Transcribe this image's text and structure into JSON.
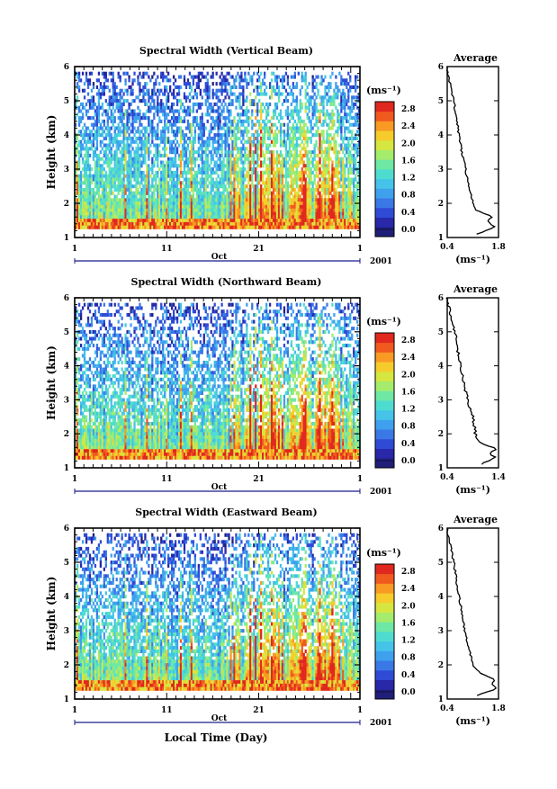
{
  "figure": {
    "xlabel": "Local Time (Day)",
    "x_ticks": [
      "1",
      "11",
      "21",
      "1"
    ],
    "month_label": "Oct",
    "year_label": "2001",
    "y_ticks": [
      "1",
      "2",
      "3",
      "4",
      "5",
      "6"
    ],
    "ylabel": "Height (km)",
    "colorbar_unit": "(ms⁻¹)",
    "colorbar_ticks": [
      "0.0",
      "0.4",
      "0.8",
      "1.2",
      "1.6",
      "2.0",
      "2.4",
      "2.8"
    ],
    "avg_title": "Average",
    "avg_unit": "(ms⁻¹)",
    "colors": {
      "colormap": [
        "#1f1f7a",
        "#2828a8",
        "#2f4bd6",
        "#3a78e6",
        "#3fa0ee",
        "#45c3e8",
        "#4fdcd0",
        "#6ee8a4",
        "#a4ec6c",
        "#d6e640",
        "#f6cc2c",
        "#f89a24",
        "#f05a1e",
        "#e0281e"
      ]
    }
  },
  "chart_data": [
    {
      "type": "heatmap",
      "title": "Spectral Width (Vertical Beam)",
      "x": "day of month, 1 Oct 2001 to 1 Nov 2001",
      "ylim": [
        1,
        6
      ],
      "zlim": [
        0.0,
        2.8
      ],
      "avg_profile": {
        "title": "Average",
        "xlim": [
          0.4,
          1.8
        ],
        "x_ticks": [
          "0.4",
          "1.8"
        ],
        "height_km": [
          1.1,
          1.3,
          1.5,
          1.6,
          1.7,
          1.8,
          2.0,
          2.5,
          3.0,
          3.5,
          4.0,
          4.5,
          5.0,
          5.3,
          5.6,
          5.8,
          6.0
        ],
        "width": [
          1.2,
          1.7,
          1.5,
          1.65,
          1.4,
          1.2,
          1.1,
          1.0,
          0.9,
          0.8,
          0.72,
          0.65,
          0.58,
          0.52,
          0.45,
          0.42,
          0.4
        ]
      }
    },
    {
      "type": "heatmap",
      "title": "Spectral Width (Northward Beam)",
      "x": "day of month, 1 Oct 2001 to 1 Nov 2001",
      "ylim": [
        1,
        6
      ],
      "zlim": [
        0.0,
        2.8
      ],
      "avg_profile": {
        "title": "Average",
        "xlim": [
          0.4,
          1.4
        ],
        "x_ticks": [
          "0.4",
          "1.4"
        ],
        "height_km": [
          1.1,
          1.3,
          1.45,
          1.55,
          1.7,
          1.8,
          2.0,
          2.5,
          3.0,
          3.5,
          4.0,
          4.5,
          5.0,
          5.3,
          5.6,
          5.8,
          6.0
        ],
        "width": [
          1.05,
          1.35,
          1.2,
          1.38,
          1.1,
          1.0,
          0.95,
          0.9,
          0.8,
          0.72,
          0.66,
          0.6,
          0.55,
          0.5,
          0.45,
          0.42,
          0.4
        ]
      }
    },
    {
      "type": "heatmap",
      "title": "Spectral Width (Eastward Beam)",
      "x": "day of month, 1 Oct 2001 to 1 Nov 2001",
      "ylim": [
        1,
        6
      ],
      "zlim": [
        0.0,
        2.8
      ],
      "avg_profile": {
        "title": "Average",
        "xlim": [
          0.4,
          1.8
        ],
        "x_ticks": [
          "0.4",
          "1.8"
        ],
        "height_km": [
          1.1,
          1.3,
          1.45,
          1.55,
          1.7,
          1.8,
          2.0,
          2.5,
          3.0,
          3.5,
          4.0,
          4.5,
          5.0,
          5.3,
          5.6,
          5.8,
          6.0
        ],
        "width": [
          1.2,
          1.75,
          1.6,
          1.72,
          1.4,
          1.25,
          1.1,
          0.98,
          0.88,
          0.8,
          0.72,
          0.65,
          0.58,
          0.52,
          0.46,
          0.42,
          0.4
        ]
      }
    }
  ]
}
